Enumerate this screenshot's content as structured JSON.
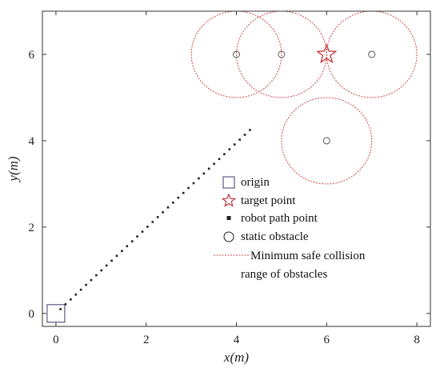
{
  "chart_data": {
    "type": "scatter",
    "title": "",
    "xlabel": "x(m)",
    "ylabel": "y(m)",
    "xlim": [
      -0.3,
      8.3
    ],
    "ylim": [
      -0.3,
      7.0
    ],
    "x_ticks": [
      0,
      2,
      4,
      6,
      8
    ],
    "y_ticks": [
      0,
      2,
      4,
      6
    ],
    "grid": false,
    "legend_position": "lower-right",
    "origin": {
      "x": 0,
      "y": 0
    },
    "target_point": {
      "x": 6,
      "y": 6
    },
    "static_obstacles": [
      {
        "x": 4,
        "y": 6
      },
      {
        "x": 5,
        "y": 6
      },
      {
        "x": 7,
        "y": 6
      },
      {
        "x": 6,
        "y": 4
      }
    ],
    "safe_range_radius": 1.0,
    "robot_path": {
      "start": [
        0.1,
        0.1
      ],
      "end": [
        4.3,
        4.25
      ],
      "points": 38
    },
    "legend": [
      {
        "key": "origin",
        "label": "origin"
      },
      {
        "key": "target",
        "label": "target point"
      },
      {
        "key": "path",
        "label": "robot path point"
      },
      {
        "key": "obstacle",
        "label": "static obstacle"
      },
      {
        "key": "range",
        "label_line1": "Minimum safe collision",
        "label_line2": "range of obstacles"
      }
    ],
    "colors": {
      "safe_range": "#c94a4a",
      "target": "#c0272d",
      "path": "#222222",
      "obstacle": "#555555",
      "origin": "#3a3a6a"
    }
  }
}
